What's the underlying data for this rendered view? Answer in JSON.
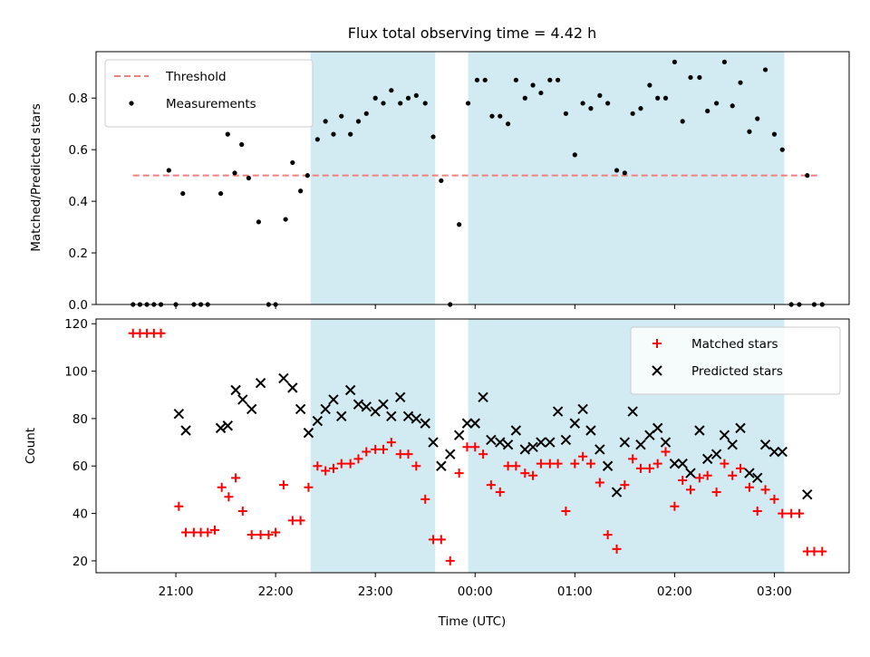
{
  "chart_data": {
    "title": "Flux total observing time = 4.42 h",
    "xlabel": "Time (UTC)",
    "x_unit": "hours UTC (values >= 24 are after midnight)",
    "xlim": [
      20.2,
      27.75
    ],
    "x_ticks": [
      {
        "value": 21,
        "label": "21:00"
      },
      {
        "value": 22,
        "label": "22:00"
      },
      {
        "value": 23,
        "label": "23:00"
      },
      {
        "value": 24,
        "label": "00:00"
      },
      {
        "value": 25,
        "label": "01:00"
      },
      {
        "value": 26,
        "label": "02:00"
      },
      {
        "value": 27,
        "label": "03:00"
      }
    ],
    "shaded_intervals": [
      [
        22.35,
        23.6
      ],
      [
        23.93,
        27.1
      ]
    ],
    "shade_color": "#add8e6",
    "panels": [
      {
        "type": "scatter",
        "ylabel": "Matched/Predicted stars",
        "ylim": [
          0,
          0.98
        ],
        "y_ticks": [
          0.0,
          0.2,
          0.4,
          0.6,
          0.8
        ],
        "y_tick_labels": [
          "0.0",
          "0.2",
          "0.4",
          "0.6",
          "0.8"
        ],
        "legend_position": "top-left",
        "threshold": {
          "name": "Threshold",
          "value": 0.5,
          "x_range": [
            20.57,
            27.45
          ],
          "color": "#f08080"
        },
        "series": [
          {
            "name": "Measurements",
            "marker": "dot",
            "color": "#000000",
            "x": [
              20.57,
              20.64,
              20.71,
              20.78,
              20.85,
              20.93,
              21.0,
              21.07,
              21.18,
              21.25,
              21.32,
              21.45,
              21.52,
              21.59,
              21.66,
              21.73,
              21.83,
              21.93,
              22.0,
              22.1,
              22.17,
              22.25,
              22.32,
              22.42,
              22.5,
              22.58,
              22.66,
              22.75,
              22.83,
              22.91,
              23.0,
              23.08,
              23.16,
              23.25,
              23.33,
              23.41,
              23.5,
              23.58,
              23.66,
              23.75,
              23.84,
              23.93,
              24.02,
              24.1,
              24.17,
              24.25,
              24.33,
              24.41,
              24.5,
              24.58,
              24.66,
              24.75,
              24.83,
              24.91,
              25.0,
              25.08,
              25.16,
              25.25,
              25.33,
              25.42,
              25.5,
              25.58,
              25.66,
              25.75,
              25.83,
              25.91,
              26.0,
              26.08,
              26.16,
              26.25,
              26.33,
              26.42,
              26.5,
              26.58,
              26.66,
              26.75,
              26.83,
              26.91,
              27.0,
              27.08,
              27.17,
              27.25,
              27.33,
              27.4,
              27.48
            ],
            "y": [
              0,
              0,
              0,
              0,
              0,
              0.52,
              0,
              0.43,
              0,
              0,
              0,
              0.43,
              0.66,
              0.51,
              0.62,
              0.49,
              0.32,
              0,
              0,
              0.33,
              0.55,
              0.44,
              0.5,
              0.64,
              0.71,
              0.66,
              0.73,
              0.66,
              0.71,
              0.74,
              0.8,
              0.78,
              0.83,
              0.78,
              0.8,
              0.81,
              0.78,
              0.65,
              0.48,
              0,
              0.31,
              0.78,
              0.87,
              0.87,
              0.73,
              0.73,
              0.7,
              0.87,
              0.8,
              0.85,
              0.82,
              0.87,
              0.87,
              0.74,
              0.58,
              0.78,
              0.76,
              0.81,
              0.78,
              0.52,
              0.51,
              0.74,
              0.76,
              0.85,
              0.8,
              0.8,
              0.94,
              0.71,
              0.88,
              0.88,
              0.75,
              0.78,
              0.94,
              0.77,
              0.86,
              0.67,
              0.72,
              0.91,
              0.66,
              0.6,
              0,
              0,
              0.5,
              0,
              0
            ]
          }
        ]
      },
      {
        "type": "scatter",
        "ylabel": "Count",
        "ylim": [
          15,
          122
        ],
        "y_ticks": [
          20,
          40,
          60,
          80,
          100,
          120
        ],
        "y_tick_labels": [
          "20",
          "40",
          "60",
          "80",
          "100",
          "120"
        ],
        "legend_position": "top-right",
        "series": [
          {
            "name": "Matched stars",
            "marker": "plus",
            "color": "#ff0000",
            "x": [
              20.57,
              20.64,
              20.71,
              20.78,
              20.85,
              21.03,
              21.1,
              21.18,
              21.25,
              21.32,
              21.39,
              21.46,
              21.53,
              21.6,
              21.67,
              21.76,
              21.85,
              21.93,
              22.0,
              22.08,
              22.17,
              22.25,
              22.33,
              22.42,
              22.5,
              22.58,
              22.66,
              22.75,
              22.83,
              22.91,
              23.0,
              23.08,
              23.16,
              23.25,
              23.33,
              23.41,
              23.5,
              23.58,
              23.66,
              23.75,
              23.84,
              23.92,
              24.0,
              24.08,
              24.16,
              24.25,
              24.33,
              24.41,
              24.5,
              24.58,
              24.66,
              24.75,
              24.83,
              24.91,
              25.0,
              25.08,
              25.16,
              25.25,
              25.33,
              25.42,
              25.5,
              25.58,
              25.66,
              25.75,
              25.83,
              25.91,
              26.0,
              26.08,
              26.16,
              26.25,
              26.33,
              26.42,
              26.5,
              26.58,
              26.66,
              26.75,
              26.83,
              26.91,
              27.0,
              27.08,
              27.17,
              27.25,
              27.33,
              27.4,
              27.48
            ],
            "y": [
              116,
              116,
              116,
              116,
              116,
              43,
              32,
              32,
              32,
              32,
              33,
              51,
              47,
              55,
              41,
              31,
              31,
              31,
              32,
              52,
              37,
              37,
              51,
              60,
              58,
              59,
              61,
              61,
              63,
              66,
              67,
              67,
              70,
              65,
              65,
              60,
              46,
              29,
              29,
              20,
              57,
              68,
              68,
              65,
              52,
              49,
              60,
              60,
              57,
              56,
              61,
              61,
              61,
              41,
              61,
              64,
              61,
              53,
              31,
              25,
              52,
              63,
              59,
              59,
              61,
              66,
              43,
              54,
              50,
              55,
              56,
              49,
              61,
              56,
              59,
              51,
              41,
              50,
              46,
              40,
              40,
              40,
              24,
              24,
              24
            ]
          },
          {
            "name": "Predicted stars",
            "marker": "x",
            "color": "#000000",
            "x": [
              21.03,
              21.1,
              21.45,
              21.52,
              21.6,
              21.67,
              21.76,
              21.85,
              22.08,
              22.17,
              22.25,
              22.33,
              22.42,
              22.5,
              22.58,
              22.66,
              22.75,
              22.83,
              22.91,
              23.0,
              23.08,
              23.16,
              23.25,
              23.33,
              23.41,
              23.5,
              23.58,
              23.66,
              23.75,
              23.84,
              23.92,
              24.0,
              24.08,
              24.16,
              24.25,
              24.33,
              24.41,
              24.5,
              24.58,
              24.66,
              24.75,
              24.83,
              24.91,
              25.0,
              25.08,
              25.16,
              25.25,
              25.33,
              25.42,
              25.5,
              25.58,
              25.66,
              25.75,
              25.83,
              25.91,
              26.0,
              26.08,
              26.16,
              26.25,
              26.33,
              26.42,
              26.5,
              26.58,
              26.66,
              26.75,
              26.83,
              26.91,
              27.0,
              27.08,
              27.33
            ],
            "y": [
              82,
              75,
              76,
              77,
              92,
              88,
              84,
              95,
              97,
              93,
              84,
              74,
              79,
              84,
              88,
              81,
              92,
              86,
              85,
              83,
              86,
              81,
              89,
              81,
              80,
              78,
              70,
              60,
              65,
              73,
              78,
              78,
              89,
              71,
              70,
              69,
              75,
              67,
              68,
              70,
              70,
              83,
              71,
              78,
              84,
              75,
              67,
              60,
              49,
              70,
              83,
              69,
              73,
              76,
              70,
              61,
              61,
              57,
              75,
              63,
              65,
              73,
              69,
              76,
              57,
              55,
              69,
              66,
              66,
              48
            ]
          }
        ]
      }
    ]
  }
}
